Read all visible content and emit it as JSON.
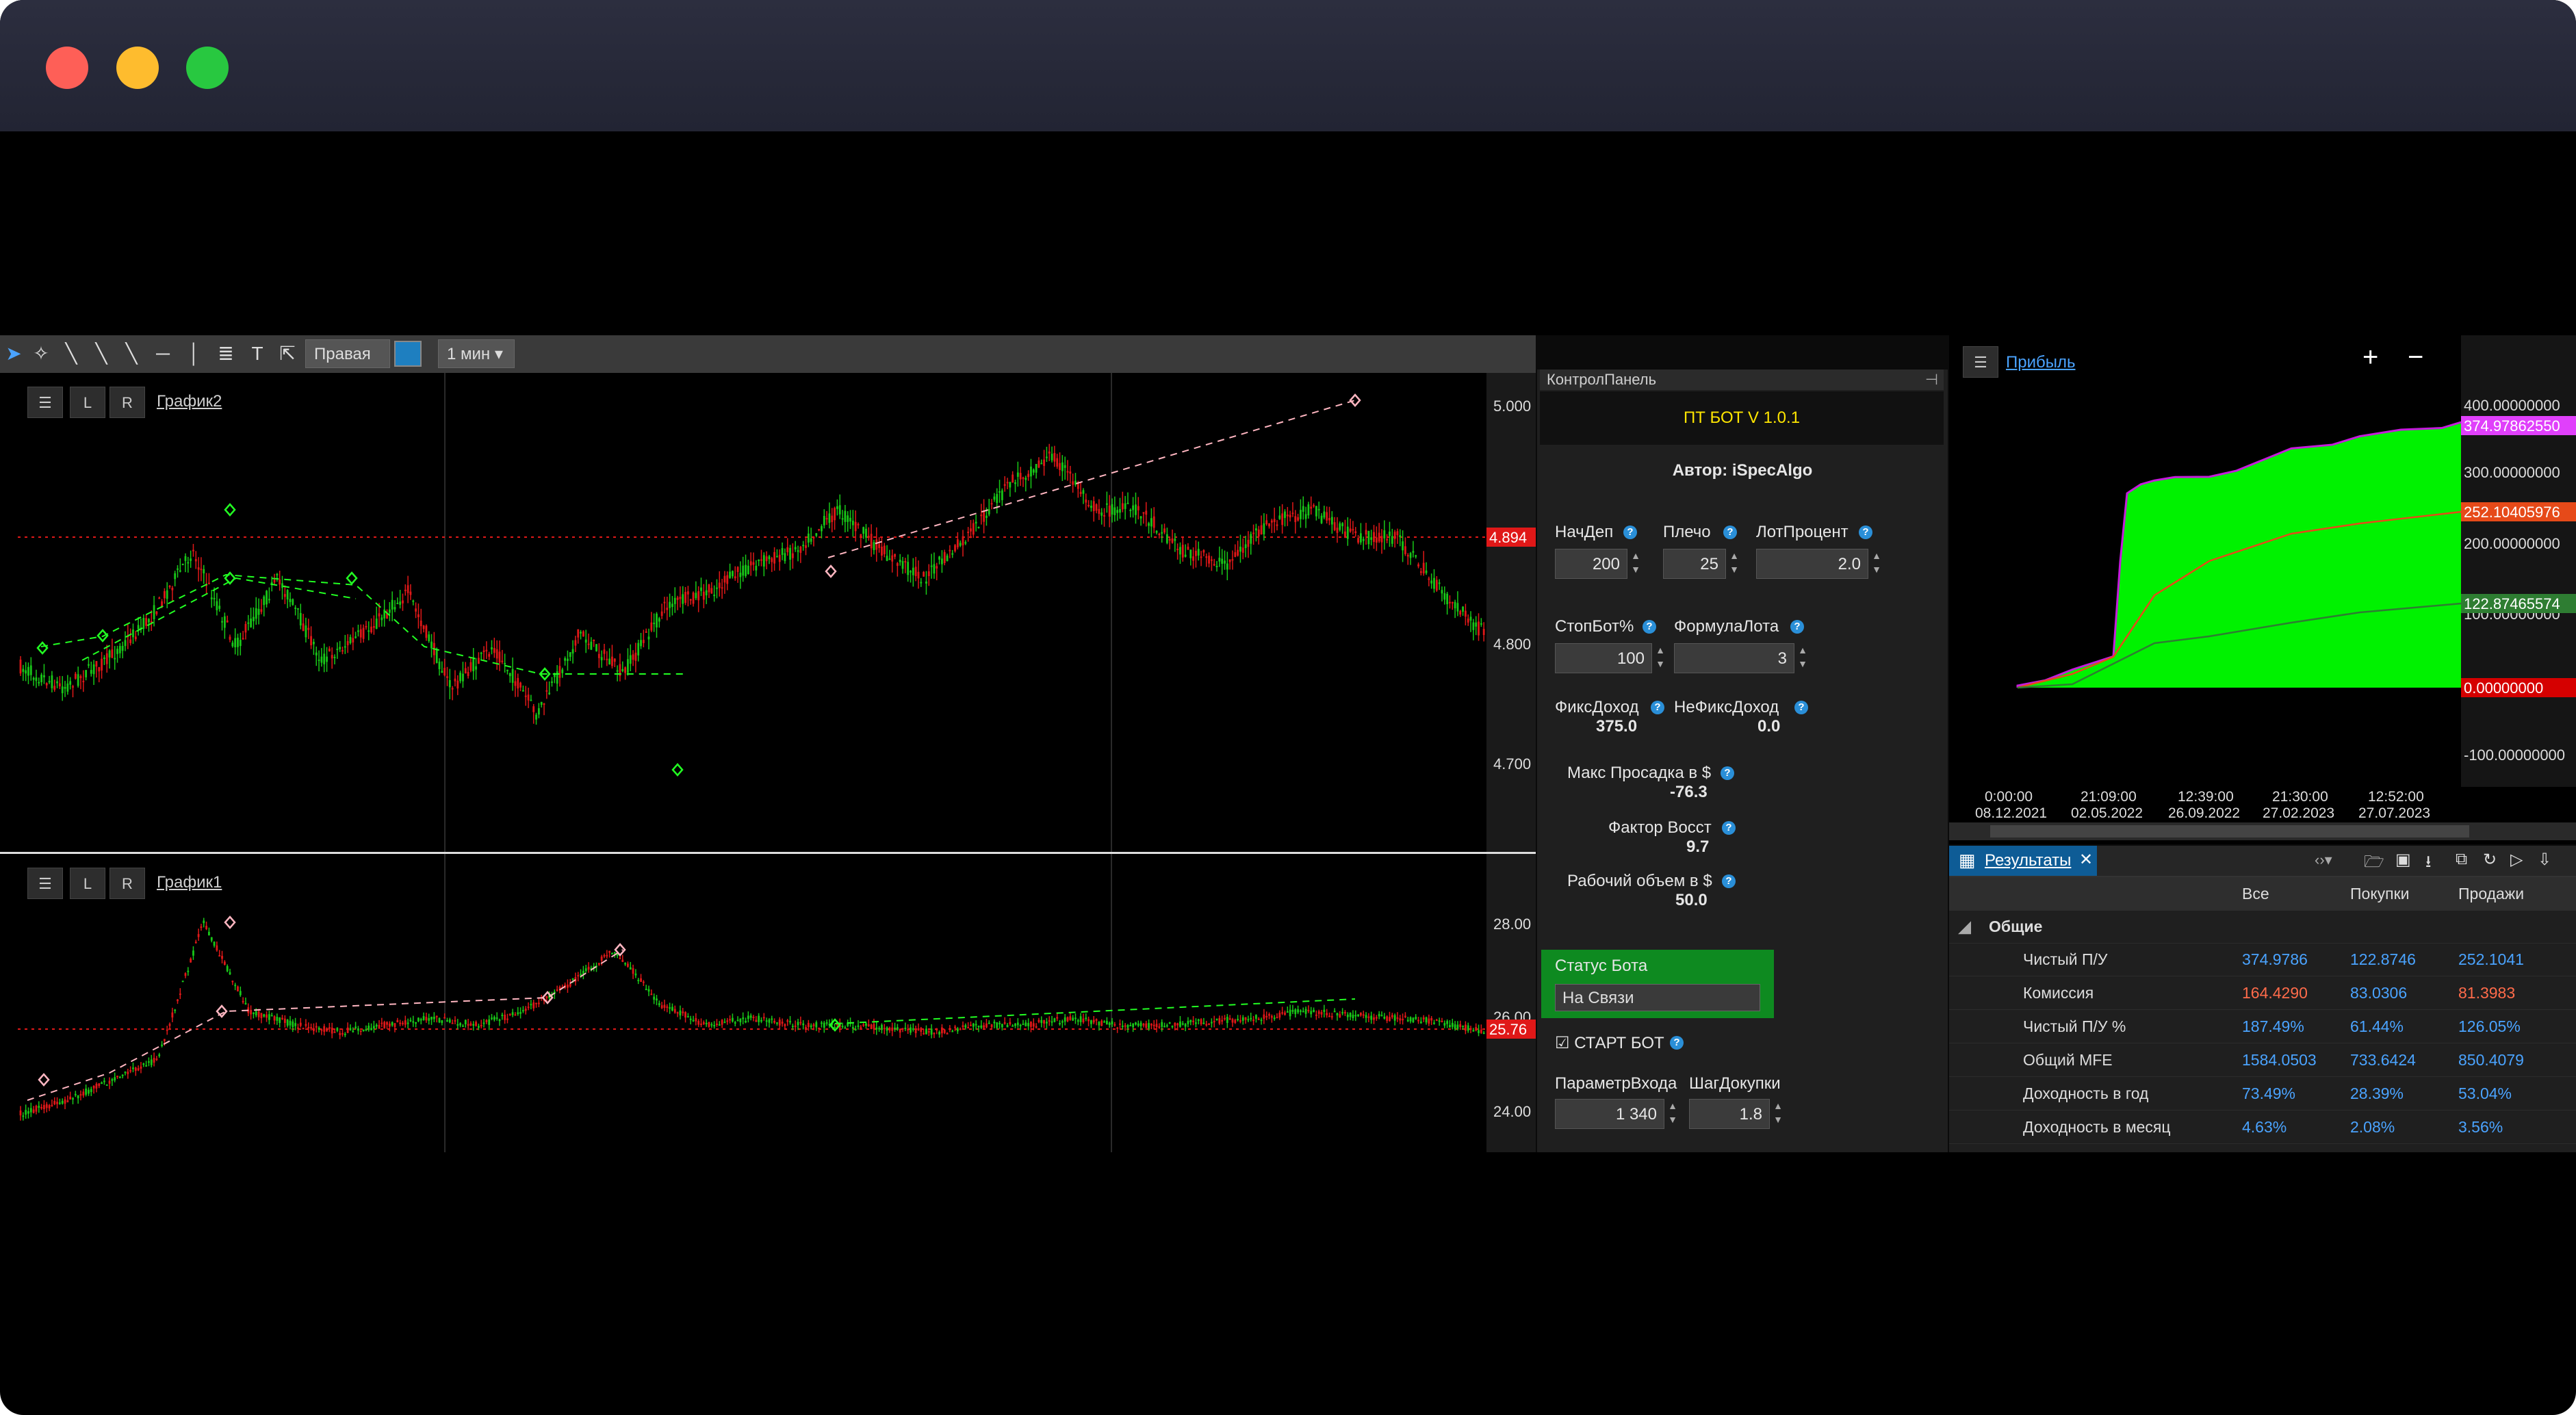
{
  "toolbar": {
    "axis_side": "Правая",
    "timeframe": "1 мин"
  },
  "chart_top": {
    "name": "График2",
    "buttons": [
      "L",
      "R"
    ],
    "price_ticks": [
      "5.000",
      "4.800",
      "4.700"
    ],
    "last_price": "4.894",
    "colors": {
      "up": "#18c818",
      "down": "#e01818",
      "signal_buy": "#22ff22",
      "signal_sell": "#ffb6c1"
    }
  },
  "chart_bottom": {
    "name": "График1",
    "buttons": [
      "L",
      "R"
    ],
    "price_ticks": [
      "28.00",
      "26.00",
      "24.00"
    ],
    "last_price": "25.76"
  },
  "panel": {
    "title": "КонтролПанель",
    "banner": "ПТ БОТ V 1.0.1",
    "author": "Автор: iSpecAlgo",
    "fields": {
      "nachdep": {
        "label": "НачДеп",
        "value": "200"
      },
      "plecho": {
        "label": "Плечо",
        "value": "25"
      },
      "lotpercent": {
        "label": "ЛотПроцент",
        "value": "2.0"
      },
      "stopbot": {
        "label": "СтопБот%",
        "value": "100"
      },
      "formula": {
        "label": "ФормулаЛота",
        "value": "3"
      },
      "fix_income": {
        "label": "ФиксДоход",
        "value": "375.0"
      },
      "nonfix_income": {
        "label": "НеФиксДоход",
        "value": "0.0"
      },
      "max_drawdown": {
        "label": "Макс Просадка в $",
        "value": "-76.3"
      },
      "recovery": {
        "label": "Фактор Восст",
        "value": "9.7"
      },
      "volume": {
        "label": "Рабочий объем в $",
        "value": "50.0"
      },
      "entry_param": {
        "label": "ПараметрВхода",
        "value": "1 340"
      },
      "step": {
        "label": "ШагДокупки",
        "value": "1.8"
      }
    },
    "status_label": "Статус Бота",
    "status_value": "На Связи",
    "start_label": "СТАРТ БОТ",
    "help": "?"
  },
  "profit": {
    "title": "Прибыль",
    "zoom_in": "+",
    "zoom_out": "−",
    "y_ticks": [
      "400.00000000",
      "300.00000000",
      "200.00000000",
      "100.00000000",
      "-100.00000000"
    ],
    "markers": [
      {
        "label": "374.97862550",
        "color": "#e040fb"
      },
      {
        "label": "252.10405976",
        "color": "#e64a19"
      },
      {
        "label": "122.87465574",
        "color": "#2e7d32"
      },
      {
        "label": "0.00000000",
        "color": "#d50000"
      }
    ],
    "x_ticks": [
      {
        "time": "0:00:00",
        "date": "08.12.2021"
      },
      {
        "time": "21:09:00",
        "date": "02.05.2022"
      },
      {
        "time": "12:39:00",
        "date": "26.09.2022"
      },
      {
        "time": "21:30:00",
        "date": "27.02.2023"
      },
      {
        "time": "12:52:00",
        "date": "27.07.2023"
      }
    ],
    "fill_color": "#00ff00"
  },
  "results": {
    "tab": "Результаты",
    "columns": [
      "Все",
      "Покупки",
      "Продажи"
    ],
    "group": "Общие",
    "rows": [
      {
        "name": "Чистый П/У",
        "all": "374.9786",
        "buy": "122.8746",
        "sell": "252.1041",
        "color": "#4aa3ff"
      },
      {
        "name": "Комиссия",
        "all": "164.4290",
        "buy": "83.0306",
        "sell": "81.3983",
        "color": "#ff6b4a"
      },
      {
        "name": "Чистый П/У %",
        "all": "187.49%",
        "buy": "61.44%",
        "sell": "126.05%",
        "color": "#4aa3ff"
      },
      {
        "name": "Общий MFE",
        "all": "1584.0503",
        "buy": "733.6424",
        "sell": "850.4079",
        "color": "#4aa3ff"
      },
      {
        "name": "Доходность в год",
        "all": "73.49%",
        "buy": "28.39%",
        "sell": "53.04%",
        "color": "#4aa3ff"
      },
      {
        "name": "Доходность в месяц",
        "all": "4.63%",
        "buy": "2.08%",
        "sell": "3.56%",
        "color": "#4aa3ff"
      }
    ]
  }
}
